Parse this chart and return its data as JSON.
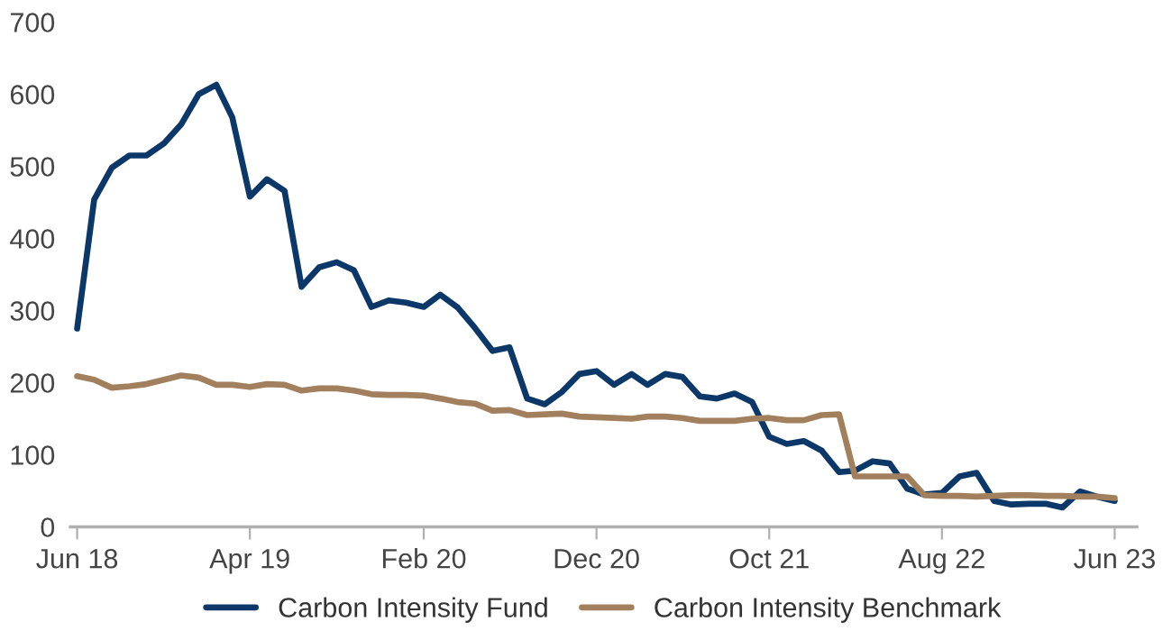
{
  "chart_data": {
    "type": "line",
    "x": [
      "2018-06",
      "2018-07",
      "2018-08",
      "2018-09",
      "2018-10",
      "2018-11",
      "2018-12",
      "2019-01",
      "2019-02",
      "2019-03",
      "2019-04",
      "2019-05",
      "2019-06",
      "2019-07",
      "2019-08",
      "2019-09",
      "2019-10",
      "2019-11",
      "2019-12",
      "2020-01",
      "2020-02",
      "2020-03",
      "2020-04",
      "2020-05",
      "2020-06",
      "2020-07",
      "2020-08",
      "2020-09",
      "2020-10",
      "2020-11",
      "2020-12",
      "2021-01",
      "2021-02",
      "2021-03",
      "2021-04",
      "2021-05",
      "2021-06",
      "2021-07",
      "2021-08",
      "2021-09",
      "2021-10",
      "2021-11",
      "2021-12",
      "2022-01",
      "2022-02",
      "2022-03",
      "2022-04",
      "2022-05",
      "2022-06",
      "2022-07",
      "2022-08",
      "2022-09",
      "2022-10",
      "2022-11",
      "2022-12",
      "2023-01",
      "2023-02",
      "2023-03",
      "2023-04",
      "2023-05",
      "2023-06"
    ],
    "series": [
      {
        "name": "Carbon Intensity Fund",
        "color": "#0b3868",
        "values": [
          275,
          454,
          498,
          515,
          515,
          532,
          558,
          600,
          613,
          568,
          458,
          482,
          466,
          333,
          360,
          367,
          356,
          305,
          314,
          311,
          305,
          322,
          304,
          276,
          244,
          249,
          178,
          170,
          187,
          212,
          216,
          197,
          212,
          197,
          212,
          208,
          181,
          178,
          185,
          173,
          125,
          115,
          119,
          106,
          76,
          78,
          91,
          88,
          53,
          45,
          47,
          70,
          75,
          36,
          31,
          32,
          32,
          27,
          49,
          42,
          36
        ]
      },
      {
        "name": "Carbon Intensity Benchmark",
        "color": "#a2805e",
        "values": [
          209,
          204,
          193,
          195,
          198,
          204,
          210,
          207,
          197,
          197,
          194,
          198,
          197,
          189,
          192,
          192,
          189,
          184,
          183,
          183,
          182,
          178,
          173,
          171,
          161,
          162,
          155,
          156,
          157,
          153,
          152,
          151,
          150,
          153,
          153,
          151,
          147,
          147,
          147,
          150,
          151,
          148,
          148,
          155,
          156,
          70,
          70,
          70,
          70,
          44,
          43,
          43,
          42,
          43,
          44,
          44,
          43,
          43,
          42,
          42,
          40
        ]
      }
    ],
    "xlim": [
      "2018-05-20",
      "2023-07-10"
    ],
    "xticks": [
      {
        "value": "2018-06",
        "label": "Jun 18"
      },
      {
        "value": "2019-04",
        "label": "Apr 19"
      },
      {
        "value": "2020-02",
        "label": "Feb 20"
      },
      {
        "value": "2020-12",
        "label": "Dec 20"
      },
      {
        "value": "2021-10",
        "label": "Oct 21"
      },
      {
        "value": "2022-08",
        "label": "Aug 22"
      },
      {
        "value": "2023-06",
        "label": "Jun 23"
      }
    ],
    "ylim": [
      0,
      700
    ],
    "yticks": [
      0,
      100,
      200,
      300,
      400,
      500,
      600,
      700
    ],
    "legend": "bottom",
    "marker": "none",
    "line_style": "solid"
  }
}
